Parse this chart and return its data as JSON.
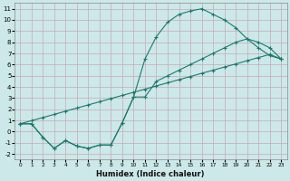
{
  "xlabel": "Humidex (Indice chaleur)",
  "bg_color": "#cce8e8",
  "grid_color": "#c8a8b8",
  "line_color": "#1a7a6e",
  "xlim": [
    -0.5,
    23.5
  ],
  "ylim": [
    -2.5,
    11.5
  ],
  "xticks": [
    0,
    1,
    2,
    3,
    4,
    5,
    6,
    7,
    8,
    9,
    10,
    11,
    12,
    13,
    14,
    15,
    16,
    17,
    18,
    19,
    20,
    21,
    22,
    23
  ],
  "yticks": [
    -2,
    -1,
    0,
    1,
    2,
    3,
    4,
    5,
    6,
    7,
    8,
    9,
    10,
    11
  ],
  "line1_x": [
    0,
    1,
    2,
    3,
    4,
    5,
    6,
    7,
    8,
    9,
    10,
    11,
    12,
    13,
    14,
    15,
    16,
    17,
    18,
    19,
    20,
    21,
    22,
    23
  ],
  "line1_y": [
    0.7,
    0.7,
    -0.5,
    -1.5,
    -0.8,
    -1.3,
    -1.5,
    -1.2,
    -1.2,
    0.8,
    3.1,
    6.5,
    8.5,
    9.8,
    10.5,
    10.8,
    11.0,
    10.5,
    10.0,
    9.3,
    8.3,
    7.5,
    6.8,
    6.5
  ],
  "line2_x": [
    0,
    1,
    2,
    3,
    4,
    5,
    6,
    7,
    8,
    9,
    10,
    11,
    12,
    13,
    14,
    15,
    16,
    17,
    18,
    19,
    20,
    21,
    22,
    23
  ],
  "line2_y": [
    0.7,
    0.98,
    1.26,
    1.54,
    1.83,
    2.11,
    2.39,
    2.67,
    2.96,
    3.24,
    3.52,
    3.8,
    4.09,
    4.37,
    4.65,
    4.93,
    5.22,
    5.5,
    5.78,
    6.06,
    6.35,
    6.63,
    6.91,
    6.5
  ],
  "line3_x": [
    0,
    1,
    2,
    3,
    4,
    5,
    6,
    7,
    8,
    9,
    10,
    11,
    12,
    13,
    14,
    15,
    16,
    17,
    18,
    19,
    20,
    21,
    22,
    23
  ],
  "line3_y": [
    0.7,
    0.7,
    -0.5,
    -1.5,
    -0.8,
    -1.3,
    -1.5,
    -1.2,
    -1.2,
    0.8,
    3.1,
    3.1,
    4.5,
    5.0,
    5.5,
    6.0,
    6.5,
    7.0,
    7.5,
    8.0,
    8.3,
    8.0,
    7.5,
    6.5
  ]
}
